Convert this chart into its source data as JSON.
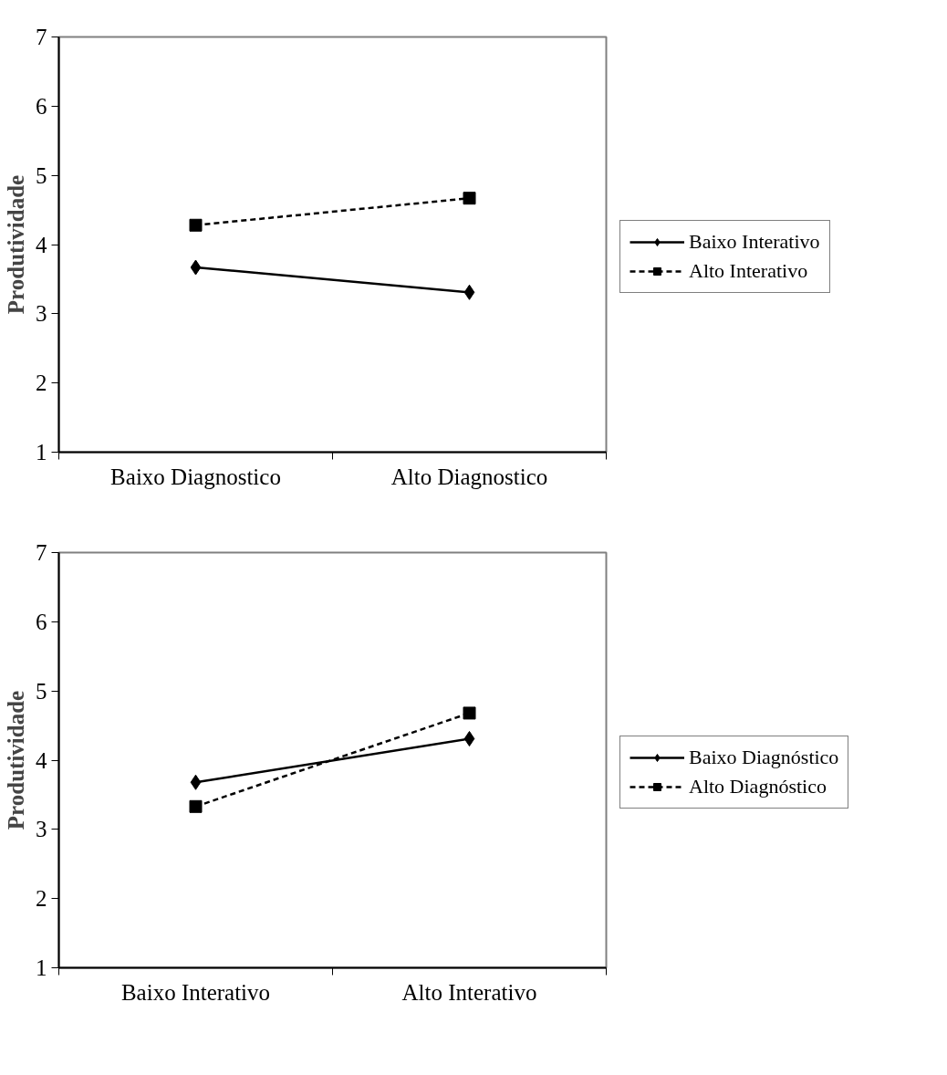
{
  "chart_data": [
    {
      "type": "line",
      "ylabel": "Produtividade",
      "categories": [
        "Baixo Diagnostico",
        "Alto Diagnostico"
      ],
      "ylim": [
        1,
        7
      ],
      "yticks": [
        1,
        2,
        3,
        4,
        5,
        6,
        7
      ],
      "grid": false,
      "legend": "right",
      "series": [
        {
          "name": "Baixo Interativo",
          "color": "#000000",
          "marker": "diamond",
          "line_style": "solid",
          "values": [
            3.67,
            3.31
          ]
        },
        {
          "name": "Alto Interativo",
          "color": "#000000",
          "marker": "square",
          "line_style": "dashed",
          "values": [
            4.28,
            4.67
          ]
        }
      ]
    },
    {
      "type": "line",
      "ylabel": "Produtividade",
      "categories": [
        "Baixo Interativo",
        "Alto Interativo"
      ],
      "ylim": [
        1,
        7
      ],
      "yticks": [
        1,
        2,
        3,
        4,
        5,
        6,
        7
      ],
      "grid": false,
      "legend": "right",
      "series": [
        {
          "name": "Baixo Diagnóstico",
          "color": "#000000",
          "marker": "diamond",
          "line_style": "solid",
          "values": [
            3.68,
            4.31
          ]
        },
        {
          "name": "Alto Diagnóstico",
          "color": "#000000",
          "marker": "square",
          "line_style": "dashed",
          "values": [
            3.33,
            4.68
          ]
        }
      ]
    }
  ]
}
